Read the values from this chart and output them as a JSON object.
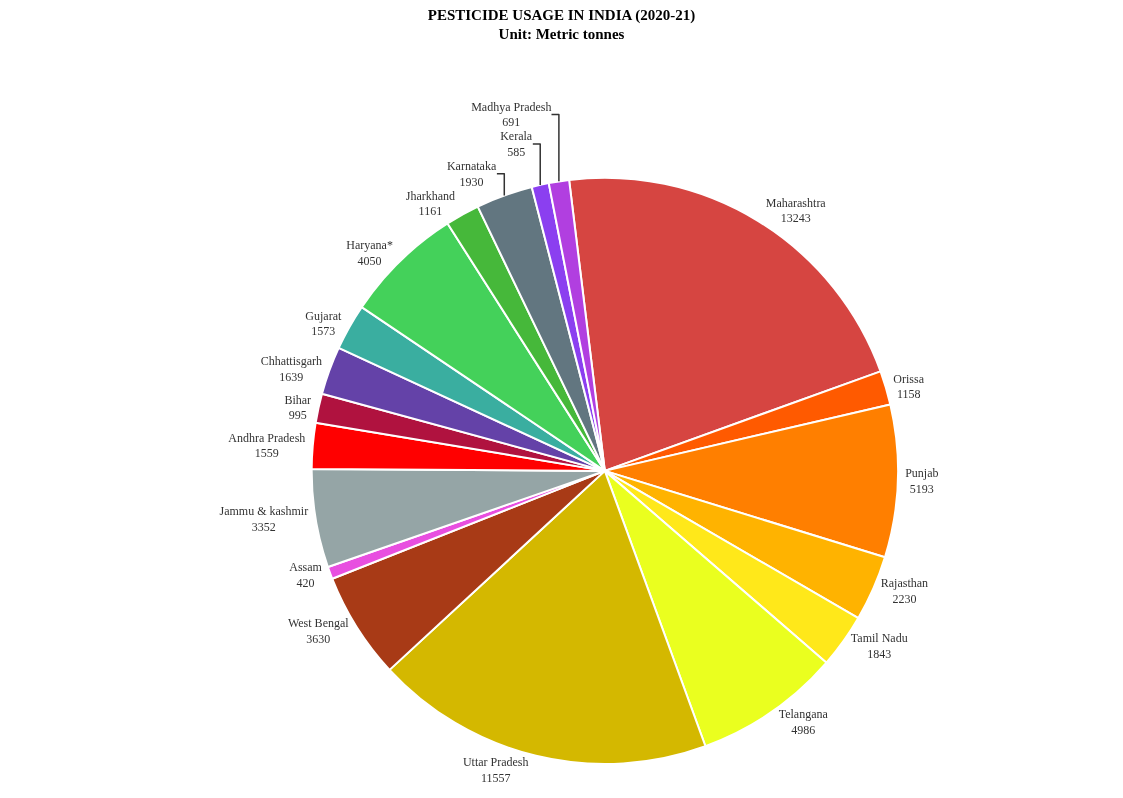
{
  "chart_data": {
    "type": "pie",
    "title": "PESTICIDE USAGE IN INDIA (2020-21)",
    "subtitle": "Unit: Metric tonnes",
    "categories": [
      "Maharashtra",
      "Orissa",
      "Punjab",
      "Rajasthan",
      "Tamil Nadu",
      "Telangana",
      "Uttar Pradesh",
      "West Bengal",
      "Assam",
      "Jammu & kashmir",
      "Andhra Pradesh",
      "Bihar",
      "Chhattisgarh",
      "Gujarat",
      "Haryana*",
      "Jharkhand",
      "Karnataka",
      "Kerala",
      "Madhya Pradesh"
    ],
    "values": [
      13243,
      1158,
      5193,
      2230,
      1843,
      4986,
      11557,
      3630,
      420,
      3352,
      1559,
      995,
      1639,
      1573,
      4050,
      1161,
      1930,
      585,
      691
    ],
    "colors": [
      "#d64541",
      "#ff5a00",
      "#ff7f00",
      "#ffb300",
      "#ffe81a",
      "#eaff1f",
      "#d4b800",
      "#a83a16",
      "#e84fe0",
      "#95a5a6",
      "#ff0000",
      "#b0123f",
      "#6442a8",
      "#3aaea0",
      "#44d15a",
      "#46b83a",
      "#627680",
      "#8b3ff0",
      "#b13fe0"
    ],
    "legend": false,
    "data_labels": true
  }
}
